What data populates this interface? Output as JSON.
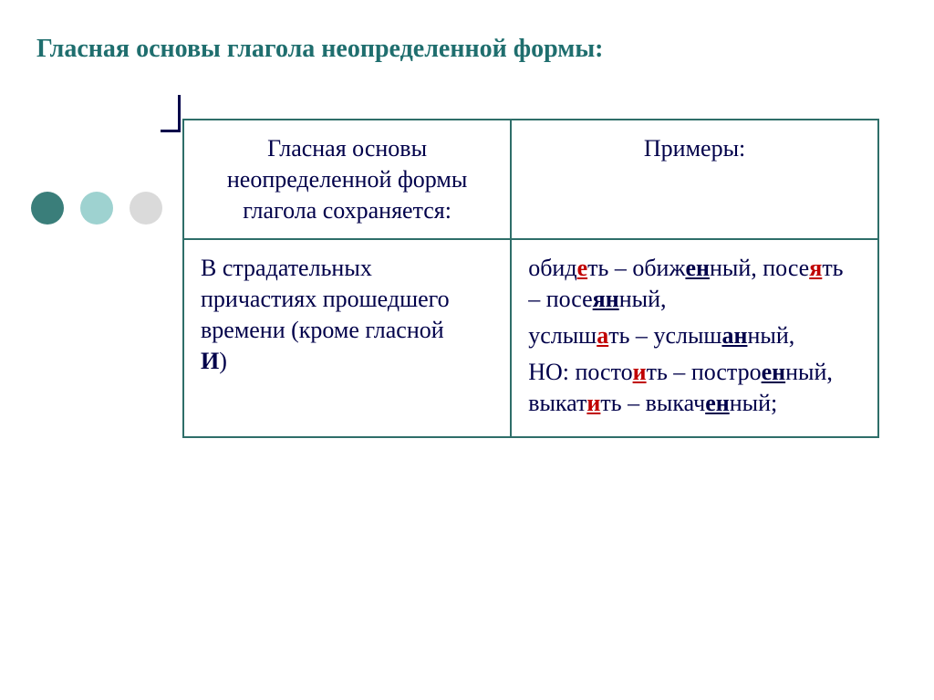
{
  "title": "Гласная основы глагола неопределенной формы:",
  "dots": {
    "colors": [
      "#3a7e7a",
      "#9ed2d0",
      "#dadada"
    ]
  },
  "table": {
    "border_color": "#2e6e69",
    "text_color": "#00004a",
    "header": {
      "left_line1": "Гласная  основы",
      "left_line2": "неопределенной формы",
      "left_line3": "глагола сохраняется:",
      "right": "Примеры:"
    },
    "row": {
      "left_l1": "В страдательных",
      "left_l2": "причастиях прошедшего",
      "left_l3": "времени (кроме гласной",
      "left_l4_bold": "И",
      "left_l4_tail": ")",
      "r1_a_pre": "обид",
      "r1_a_hl": "е",
      "r1_a_post": "ть – обиж",
      "r1_a_hl2": "ен",
      "r1_a_end": "ный,",
      "r1_b_pre": "посе",
      "r1_b_hl": "я",
      "r1_b_post": "ть – посе",
      "r1_b_hl2": "ян",
      "r1_b_end": "ный,",
      "r2_a_pre": "услыш",
      "r2_a_hl": "а",
      "r2_a_post": "ть –",
      "r2_b_pre": "услыш",
      "r2_b_hl": "ан",
      "r2_b_end": "ный,",
      "r3_no": "НО: ",
      "r3_a_pre": "посто",
      "r3_a_hl": "и",
      "r3_a_post": "ть –",
      "r3_b_pre": "постро",
      "r3_b_hl": "ен",
      "r3_b_mid": "ный, выкат",
      "r3_b_hl2": "и",
      "r3_b_post": "ть –",
      "r3_c_pre": "выкач",
      "r3_c_hl": "ен",
      "r3_c_end": "ный;"
    }
  }
}
